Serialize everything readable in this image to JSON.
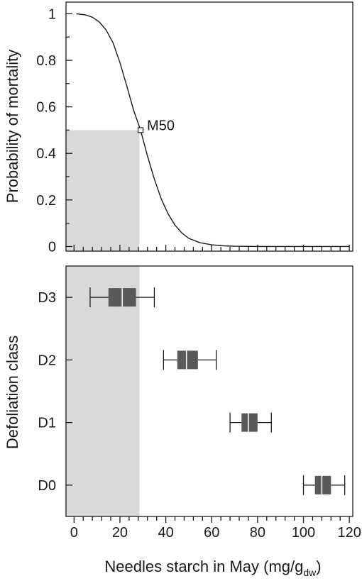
{
  "chart_data": [
    {
      "type": "line",
      "ylabel": "Probability of mortality",
      "xlim": [
        -3.5,
        121.5
      ],
      "ylim": [
        -0.02,
        1.05
      ],
      "yticks": [
        0,
        0.2,
        0.4,
        0.6,
        0.8,
        1
      ],
      "ytick_labels": [
        "0",
        "0.2",
        "0.4",
        "0.6",
        "0.8",
        "1"
      ],
      "xtick_minor_step": 4,
      "grid": false,
      "series": [
        {
          "x": [
            1,
            5,
            8,
            11,
            14,
            17,
            20,
            23,
            26,
            29,
            32,
            35,
            38,
            41,
            44,
            47,
            50,
            55,
            60,
            65,
            70,
            80,
            90,
            100,
            120
          ],
          "y": [
            1.0,
            0.995,
            0.985,
            0.965,
            0.93,
            0.875,
            0.79,
            0.69,
            0.585,
            0.5,
            0.39,
            0.29,
            0.205,
            0.14,
            0.092,
            0.058,
            0.035,
            0.016,
            0.007,
            0.003,
            0.001,
            0.0,
            0.0,
            0.0,
            0.0
          ]
        }
      ],
      "annotations": [
        {
          "text": "M50",
          "x": 29,
          "y": 0.5,
          "marker": "open-square"
        }
      ],
      "shaded_region": {
        "x": [
          -3.5,
          28.5
        ],
        "y": [
          -0.02,
          0.5
        ],
        "color": "#d9d9d9"
      }
    },
    {
      "type": "box",
      "ylabel": "Defoliation class",
      "xlabel": "Needles starch in May (mg/g",
      "xlabel_subscript": "dw",
      "xlabel_suffix": ")",
      "xlim": [
        -3.5,
        121.5
      ],
      "xticks": [
        0,
        20,
        40,
        60,
        80,
        100,
        120
      ],
      "xtick_labels": [
        "0",
        "20",
        "40",
        "60",
        "80",
        "100",
        "120"
      ],
      "xtick_minor_step": 4,
      "categories": [
        "D3",
        "D2",
        "D1",
        "D0"
      ],
      "boxes": [
        {
          "category": "D3",
          "whisker_low": 7,
          "q1": 15,
          "median": 21,
          "q3": 27,
          "whisker_high": 35
        },
        {
          "category": "D2",
          "whisker_low": 39,
          "q1": 45,
          "median": 49,
          "q3": 54,
          "whisker_high": 62
        },
        {
          "category": "D1",
          "whisker_low": 68,
          "q1": 73,
          "median": 76,
          "q3": 80,
          "whisker_high": 86
        },
        {
          "category": "D0",
          "whisker_low": 100,
          "q1": 105,
          "median": 108,
          "q3": 112,
          "whisker_high": 118
        }
      ],
      "box_color": "#595959",
      "shaded_region": {
        "x": [
          -3.5,
          28.5
        ],
        "color": "#d9d9d9"
      }
    }
  ]
}
